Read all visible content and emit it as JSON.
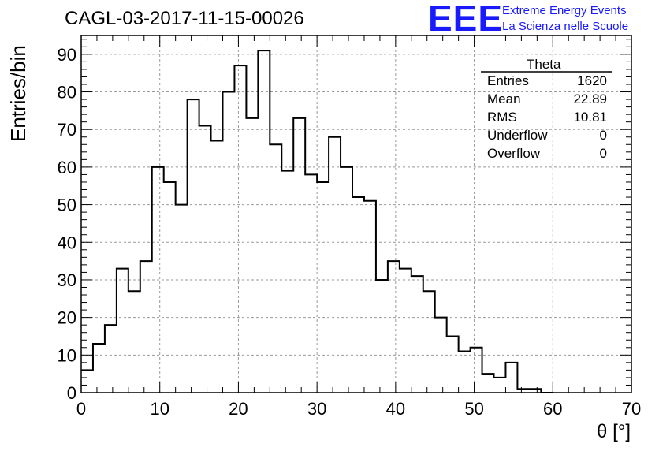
{
  "header": {
    "title": "CAGL-03-2017-11-15-00026",
    "logo_text": "EEE",
    "logo_line1": "Extreme Energy Events",
    "logo_line2": "La Scienza nelle Scuole"
  },
  "stats_box": {
    "title": "Theta",
    "rows": [
      {
        "key": "Entries",
        "value": "1620"
      },
      {
        "key": "Mean",
        "value": "22.89"
      },
      {
        "key": "RMS",
        "value": "10.81"
      },
      {
        "key": "Underflow",
        "value": "0"
      },
      {
        "key": "Overflow",
        "value": "0"
      }
    ]
  },
  "chart_data": {
    "type": "bar",
    "title": "CAGL-03-2017-11-15-00026",
    "xlabel": "θ [°]",
    "ylabel": "Entries/bin",
    "xlim": [
      0,
      70
    ],
    "ylim": [
      0,
      95
    ],
    "grid": true,
    "bin_width": 1.5,
    "x_ticks": [
      0,
      10,
      20,
      30,
      40,
      50,
      60,
      70
    ],
    "y_ticks": [
      0,
      10,
      20,
      30,
      40,
      50,
      60,
      70,
      80,
      90
    ],
    "values": [
      6,
      13,
      18,
      33,
      27,
      35,
      60,
      56,
      50,
      78,
      71,
      67,
      80,
      87,
      73,
      91,
      66,
      59,
      73,
      58,
      56,
      68,
      60,
      52,
      51,
      30,
      35,
      33,
      31,
      27,
      20,
      15,
      11,
      12,
      5,
      4,
      8,
      1,
      1,
      0
    ]
  }
}
